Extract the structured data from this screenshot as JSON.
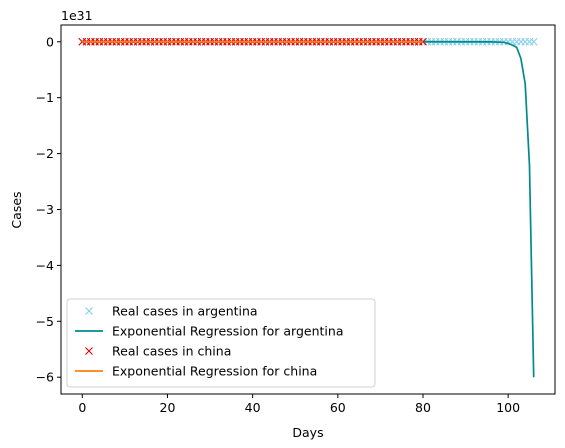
{
  "chart_data": {
    "type": "line",
    "xlabel": "Days",
    "ylabel": "Cases",
    "y_offset_text": "1e31",
    "xlim": [
      -5,
      111
    ],
    "ylim": [
      -6.3,
      0.3
    ],
    "x_ticks": [
      0,
      20,
      40,
      60,
      80,
      100
    ],
    "y_ticks": [
      0,
      -1,
      -2,
      -3,
      -4,
      -5,
      -6
    ],
    "x_tick_labels": [
      "0",
      "20",
      "40",
      "60",
      "80",
      "100"
    ],
    "y_tick_labels": [
      "0",
      "−1",
      "−2",
      "−3",
      "−4",
      "−5",
      "−6"
    ],
    "legend_location": "lower-left",
    "colors": {
      "argentina_real": "#87ceeb",
      "argentina_fit": "#008b8b",
      "china_real": "#e30000",
      "china_fit": "#ff7f0e"
    },
    "series": [
      {
        "name": "Real cases in argentina",
        "style": "marker-x",
        "x_start": 0,
        "x_end": 106,
        "x_step": 1,
        "y_value": 0
      },
      {
        "name": "Exponential Regression for argentina",
        "style": "line",
        "points": [
          [
            80,
            0
          ],
          [
            96,
            -0.002
          ],
          [
            99,
            -0.01
          ],
          [
            100,
            -0.03
          ],
          [
            101,
            -0.06
          ],
          [
            102,
            -0.1
          ],
          [
            103,
            -0.3
          ],
          [
            104,
            -0.75
          ],
          [
            105,
            -2.2
          ],
          [
            106,
            -6.0
          ]
        ]
      },
      {
        "name": "Real cases in china",
        "style": "marker-x",
        "x_start": 0,
        "x_end": 80,
        "x_step": 1,
        "y_value": 0
      },
      {
        "name": "Exponential Regression for china",
        "style": "line",
        "points": [
          [
            0,
            0
          ],
          [
            80,
            0
          ]
        ]
      }
    ]
  }
}
